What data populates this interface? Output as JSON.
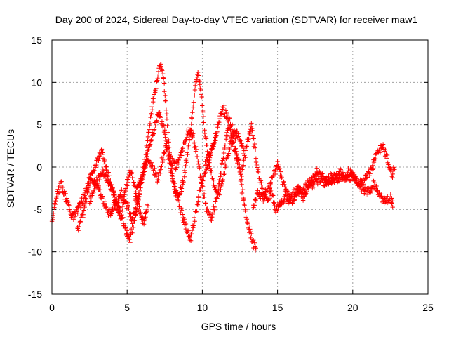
{
  "chart_data": {
    "type": "scatter",
    "title": "Day 200 of 2024, Sidereal Day-to-day VTEC variation (SDTVAR) for receiver maw1",
    "xlabel": "GPS time / hours",
    "ylabel": "SDTVAR / TECUs",
    "xlim": [
      0,
      25
    ],
    "ylim": [
      -15,
      15
    ],
    "xticks": [
      0,
      5,
      10,
      15,
      20,
      25
    ],
    "yticks": [
      -15,
      -10,
      -5,
      0,
      5,
      10,
      15
    ],
    "grid": true,
    "marker": "+",
    "colors": {
      "series": "#ff0000",
      "grid": "#a0a0a0",
      "axis": "#000000"
    },
    "series": [
      {
        "name": "SDTVAR",
        "tracks": [
          {
            "x": [
              0.0,
              0.3,
              0.6,
              1.0,
              1.3,
              1.6,
              2.0,
              2.3,
              2.6,
              3.0,
              3.3,
              3.6,
              4.0,
              4.3,
              4.6,
              4.9,
              5.2,
              5.5,
              5.8,
              6.1,
              6.4
            ],
            "y": [
              -6.5,
              -3.5,
              -2.0,
              -4.0,
              -6.0,
              -5.5,
              -4.0,
              -2.5,
              -1.0,
              0.5,
              2.0,
              0.0,
              -2.5,
              -5.0,
              -6.0,
              -2.5,
              -0.5,
              -2.0,
              -5.0,
              -6.5,
              -4.5
            ]
          },
          {
            "x": [
              1.7,
              2.0,
              2.3,
              2.6,
              3.0,
              3.4,
              3.8,
              4.2,
              4.6,
              5.0,
              5.3,
              5.6,
              6.0,
              6.4,
              6.8,
              7.1,
              7.4,
              7.7,
              8.0,
              8.4,
              8.8,
              9.2,
              9.5,
              9.8,
              10.1,
              10.4,
              10.7,
              11.0
            ],
            "y": [
              -7.5,
              -6.0,
              -3.5,
              -1.5,
              -2.0,
              -4.0,
              -5.5,
              -4.5,
              -3.0,
              -4.5,
              -6.0,
              -5.0,
              -1.0,
              2.0,
              4.5,
              6.5,
              5.0,
              2.0,
              -1.5,
              -4.0,
              -6.5,
              -8.5,
              -6.0,
              -3.0,
              -1.0,
              0.5,
              2.5,
              4.0
            ]
          },
          {
            "x": [
              2.5,
              2.9,
              3.3,
              3.7,
              4.1,
              4.5,
              4.9,
              5.2,
              5.5,
              5.9,
              6.2,
              6.5,
              6.8,
              7.0,
              7.2,
              7.4,
              7.6,
              7.8,
              8.1,
              8.4,
              8.7,
              9.0,
              9.3,
              9.5,
              9.7,
              9.9,
              10.1,
              10.4,
              10.7,
              11.0,
              11.3,
              11.6,
              11.9,
              12.2,
              12.5,
              12.8
            ],
            "y": [
              -4.0,
              -2.0,
              -0.5,
              -1.5,
              -3.0,
              -5.0,
              -7.5,
              -8.5,
              -6.0,
              -2.5,
              1.0,
              5.0,
              8.5,
              10.5,
              12.5,
              11.0,
              7.0,
              2.0,
              -2.0,
              -3.5,
              -2.0,
              1.5,
              5.5,
              9.0,
              11.5,
              9.0,
              5.0,
              1.0,
              -1.5,
              -3.5,
              -2.0,
              0.5,
              3.0,
              4.5,
              3.0,
              1.5
            ]
          },
          {
            "x": [
              5.5,
              5.8,
              6.1,
              6.4,
              6.7,
              7.0,
              7.3,
              7.6,
              7.9,
              8.2,
              8.5,
              8.8,
              9.1,
              9.4,
              9.7,
              10.0,
              10.3,
              10.6,
              10.9,
              11.2,
              11.5,
              11.8,
              12.1,
              12.4,
              12.7,
              13.0,
              13.3,
              13.6
            ],
            "y": [
              -3.5,
              -2.0,
              -0.5,
              1.0,
              0.0,
              -1.5,
              0.5,
              2.5,
              1.0,
              0.0,
              1.0,
              3.0,
              4.5,
              3.5,
              1.0,
              -2.5,
              -5.0,
              -6.0,
              -4.0,
              -1.0,
              2.5,
              5.5,
              4.0,
              0.5,
              -3.5,
              -6.5,
              -8.5,
              -10.0
            ]
          },
          {
            "x": [
              10.2,
              10.5,
              10.8,
              11.1,
              11.4,
              11.7,
              12.0,
              12.3,
              12.6,
              12.9,
              13.1,
              13.3,
              13.5,
              13.8,
              14.1,
              14.4,
              14.7,
              15.0,
              15.3,
              15.6,
              16.0,
              16.4,
              16.8,
              17.2,
              17.6,
              18.0,
              18.4,
              18.8,
              19.2,
              19.6,
              20.0,
              20.4,
              20.8,
              21.2,
              21.6,
              22.0,
              22.3,
              22.6,
              22.8
            ],
            "y": [
              0.5,
              1.5,
              3.0,
              5.5,
              7.0,
              5.5,
              3.0,
              1.0,
              -1.0,
              2.0,
              4.0,
              5.0,
              2.0,
              -1.5,
              -3.0,
              -2.5,
              -1.0,
              0.5,
              -1.5,
              -3.0,
              -4.0,
              -3.0,
              -2.5,
              -1.5,
              -0.5,
              -1.0,
              -2.0,
              -1.5,
              -0.5,
              -1.5,
              -1.0,
              -2.0,
              -1.5,
              -0.5,
              1.5,
              2.5,
              1.0,
              -1.0,
              0.0
            ]
          },
          {
            "x": [
              13.4,
              13.7,
              14.0,
              14.3,
              14.6,
              14.9,
              15.2,
              15.5,
              15.8,
              16.1,
              16.4,
              16.7,
              17.0,
              17.4,
              17.8,
              18.2,
              18.6,
              19.0,
              19.4,
              19.8,
              20.2,
              20.6,
              21.0,
              21.4,
              21.8,
              22.2,
              22.5,
              22.7
            ],
            "y": [
              -4.5,
              -3.0,
              -3.5,
              -4.0,
              -3.0,
              -5.0,
              -4.5,
              -3.5,
              -4.0,
              -3.0,
              -2.5,
              -3.5,
              -2.5,
              -2.0,
              -1.5,
              -2.0,
              -1.0,
              -1.5,
              -1.0,
              -0.5,
              -1.5,
              -2.5,
              -3.0,
              -2.0,
              -3.5,
              -4.0,
              -3.5,
              -4.5
            ]
          }
        ]
      }
    ]
  }
}
